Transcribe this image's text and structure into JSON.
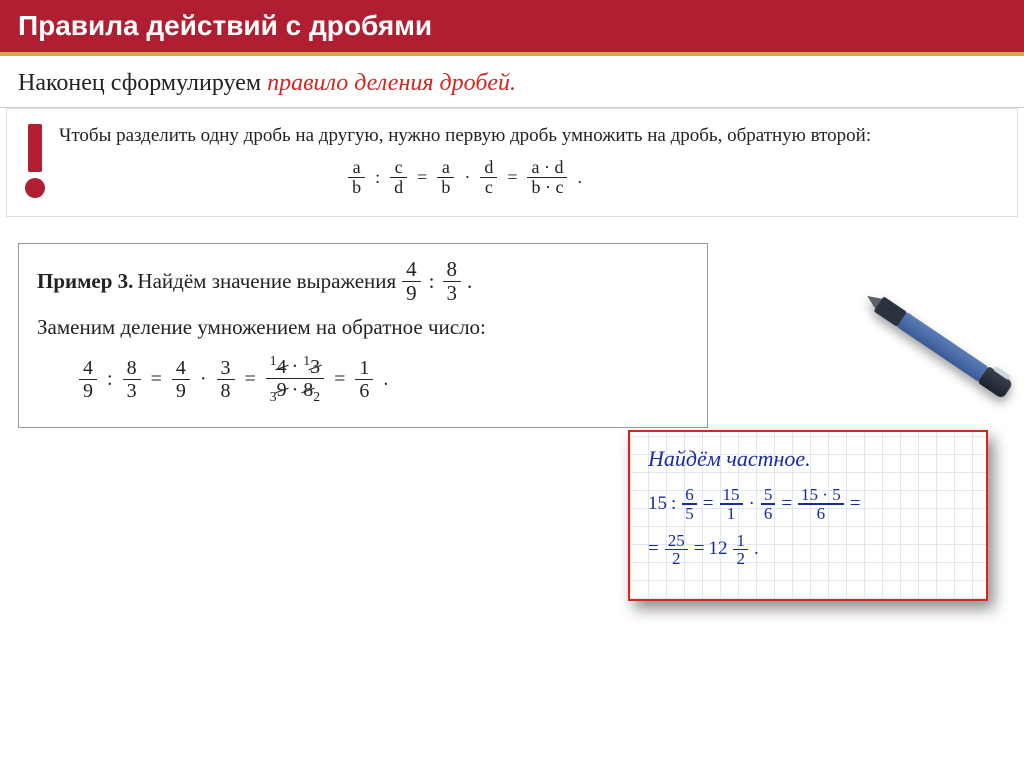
{
  "header": {
    "title": "Правила действий с дробями"
  },
  "subheader": {
    "black": "Наконец сформулируем  ",
    "red": "правило деления дробей."
  },
  "rule": {
    "text": "Чтобы разделить одну дробь на другую, нужно первую дробь умножить на дробь, обратную второй:",
    "formula": {
      "f1": {
        "n": "a",
        "d": "b"
      },
      "op1": ":",
      "f2": {
        "n": "c",
        "d": "d"
      },
      "eq1": "=",
      "f3": {
        "n": "a",
        "d": "b"
      },
      "op2": "·",
      "f4": {
        "n": "d",
        "d": "c"
      },
      "eq2": "=",
      "f5": {
        "n": "a · d",
        "d": "b · c"
      },
      "end": "."
    }
  },
  "example": {
    "label": "Пример 3.",
    "line1a": "Найдём значение выражения",
    "frac1": {
      "n": "4",
      "d": "9"
    },
    "colon": ":",
    "frac2": {
      "n": "8",
      "d": "3"
    },
    "period": ".",
    "line2": "Заменим деление умножением на обратное число:",
    "calc": {
      "f1": {
        "n": "4",
        "d": "9"
      },
      "op1": ":",
      "f2": {
        "n": "8",
        "d": "3"
      },
      "eq1": "=",
      "f3": {
        "n": "4",
        "d": "9"
      },
      "op2": "·",
      "f4": {
        "n": "3",
        "d": "8"
      },
      "eq2": "=",
      "cancel": {
        "sup1": "1",
        "n1": "4",
        "dot": "·",
        "sup2": "1",
        "n2": "3",
        "sub1": "3",
        "d1": "9",
        "dot2": "·",
        "sub2": "2",
        "d2": "8"
      },
      "eq3": "=",
      "f6": {
        "n": "1",
        "d": "6"
      },
      "end": "."
    }
  },
  "notebook": {
    "title": "Найдём частное.",
    "row1": {
      "a": "15",
      "op1": ":",
      "f1": {
        "n": "6",
        "d": "5"
      },
      "eq1": "=",
      "f2": {
        "n": "15",
        "d": "1"
      },
      "op2": "·",
      "f3": {
        "n": "5",
        "d": "6"
      },
      "eq2": "=",
      "f4": {
        "n": "15 · 5",
        "d": "6"
      },
      "eq3": "="
    },
    "row2": {
      "eq": "=",
      "f1": {
        "n": "25",
        "d": "2"
      },
      "eq2": "=",
      "whole": "12",
      "f2": {
        "n": "1",
        "d": "2"
      },
      "end": "."
    }
  },
  "colors": {
    "header_bg": "#b01e32",
    "header_border": "#d4a94e",
    "red_text": "#d22620",
    "ink_blue": "#1a2aa0",
    "grid": "#dfe8f0"
  }
}
